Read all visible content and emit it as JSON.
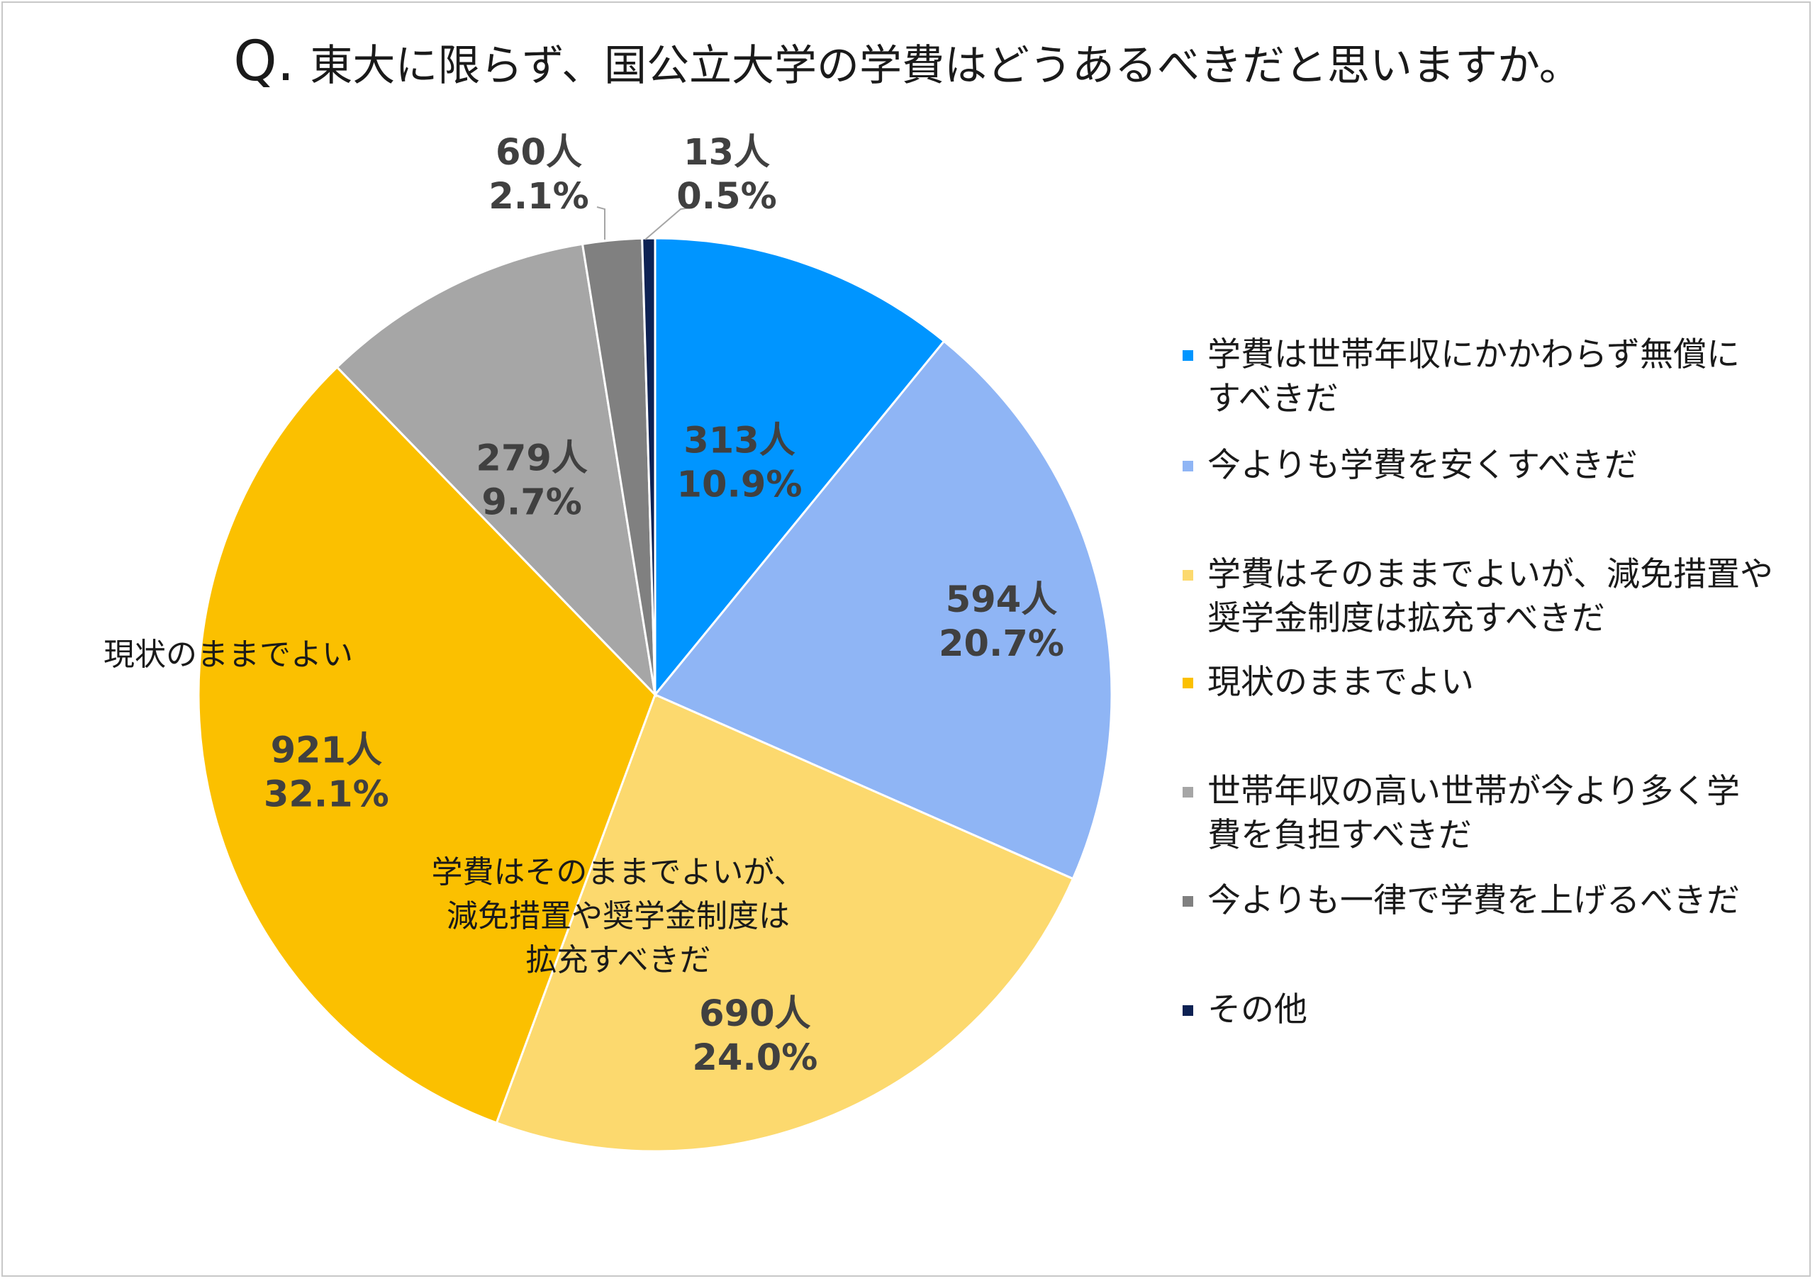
{
  "title": {
    "q": "Q.",
    "text": "東大に限らず、国公立大学の学費はどうあるべきだと思いますか。"
  },
  "chart_data": {
    "type": "pie",
    "title": "Q. 東大に限らず、国公立大学の学費はどうあるべきだと思いますか。",
    "slices": [
      {
        "name": "学費は世帯年収にかかわらず無償にすべきだ",
        "count_label": "313人",
        "percent_label": "10.9%",
        "value": 313,
        "percent": 10.9,
        "color": "#0095FF"
      },
      {
        "name": "今よりも学費を安くすべきだ",
        "count_label": "594人",
        "percent_label": "20.7%",
        "value": 594,
        "percent": 20.7,
        "color": "#8FB5F5"
      },
      {
        "name": "学費はそのままでよいが、減免措置や奨学金制度は拡充すべきだ",
        "count_label": "690人",
        "percent_label": "24.0%",
        "value": 690,
        "percent": 24.0,
        "color": "#FCD96E"
      },
      {
        "name": "現状のままでよい",
        "count_label": "921人",
        "percent_label": "32.1%",
        "value": 921,
        "percent": 32.1,
        "color": "#FBC000"
      },
      {
        "name": "世帯年収の高い世帯が今より多く学費を負担すべきだ",
        "count_label": "279人",
        "percent_label": "9.7%",
        "value": 279,
        "percent": 9.7,
        "color": "#A6A6A6"
      },
      {
        "name": "今よりも一律で学費を上げるべきだ",
        "count_label": "60人",
        "percent_label": "2.1%",
        "value": 60,
        "percent": 2.1,
        "color": "#808080"
      },
      {
        "name": "その他",
        "count_label": "13人",
        "percent_label": "0.5%",
        "value": 13,
        "percent": 0.5,
        "color": "#0D2153"
      }
    ],
    "inside_category_labels": [
      {
        "slice": 2,
        "text": "学費はそのままでよいが、\n減免措置や奨学金制度は\n拡充すべきだ"
      },
      {
        "slice": 3,
        "text": "現状のままでよい"
      }
    ],
    "legend_position": "right"
  },
  "legend": {
    "items": [
      {
        "label": "学費は世帯年収にかかわらず無償に\nすべきだ",
        "color": "#0095FF"
      },
      {
        "label": "今よりも学費を安くすべきだ",
        "color": "#8FB5F5"
      },
      {
        "label": "学費はそのままでよいが、減免措置や\n奨学金制度は拡充すべきだ",
        "color": "#FCD96E"
      },
      {
        "label": "現状のままでよい",
        "color": "#FBC000"
      },
      {
        "label": "世帯年収の高い世帯が今より多く学\n費を負担すべきだ",
        "color": "#A6A6A6"
      },
      {
        "label": "今よりも一律で学費を上げるべきだ",
        "color": "#808080"
      },
      {
        "label": "その他",
        "color": "#0D2153"
      }
    ]
  }
}
